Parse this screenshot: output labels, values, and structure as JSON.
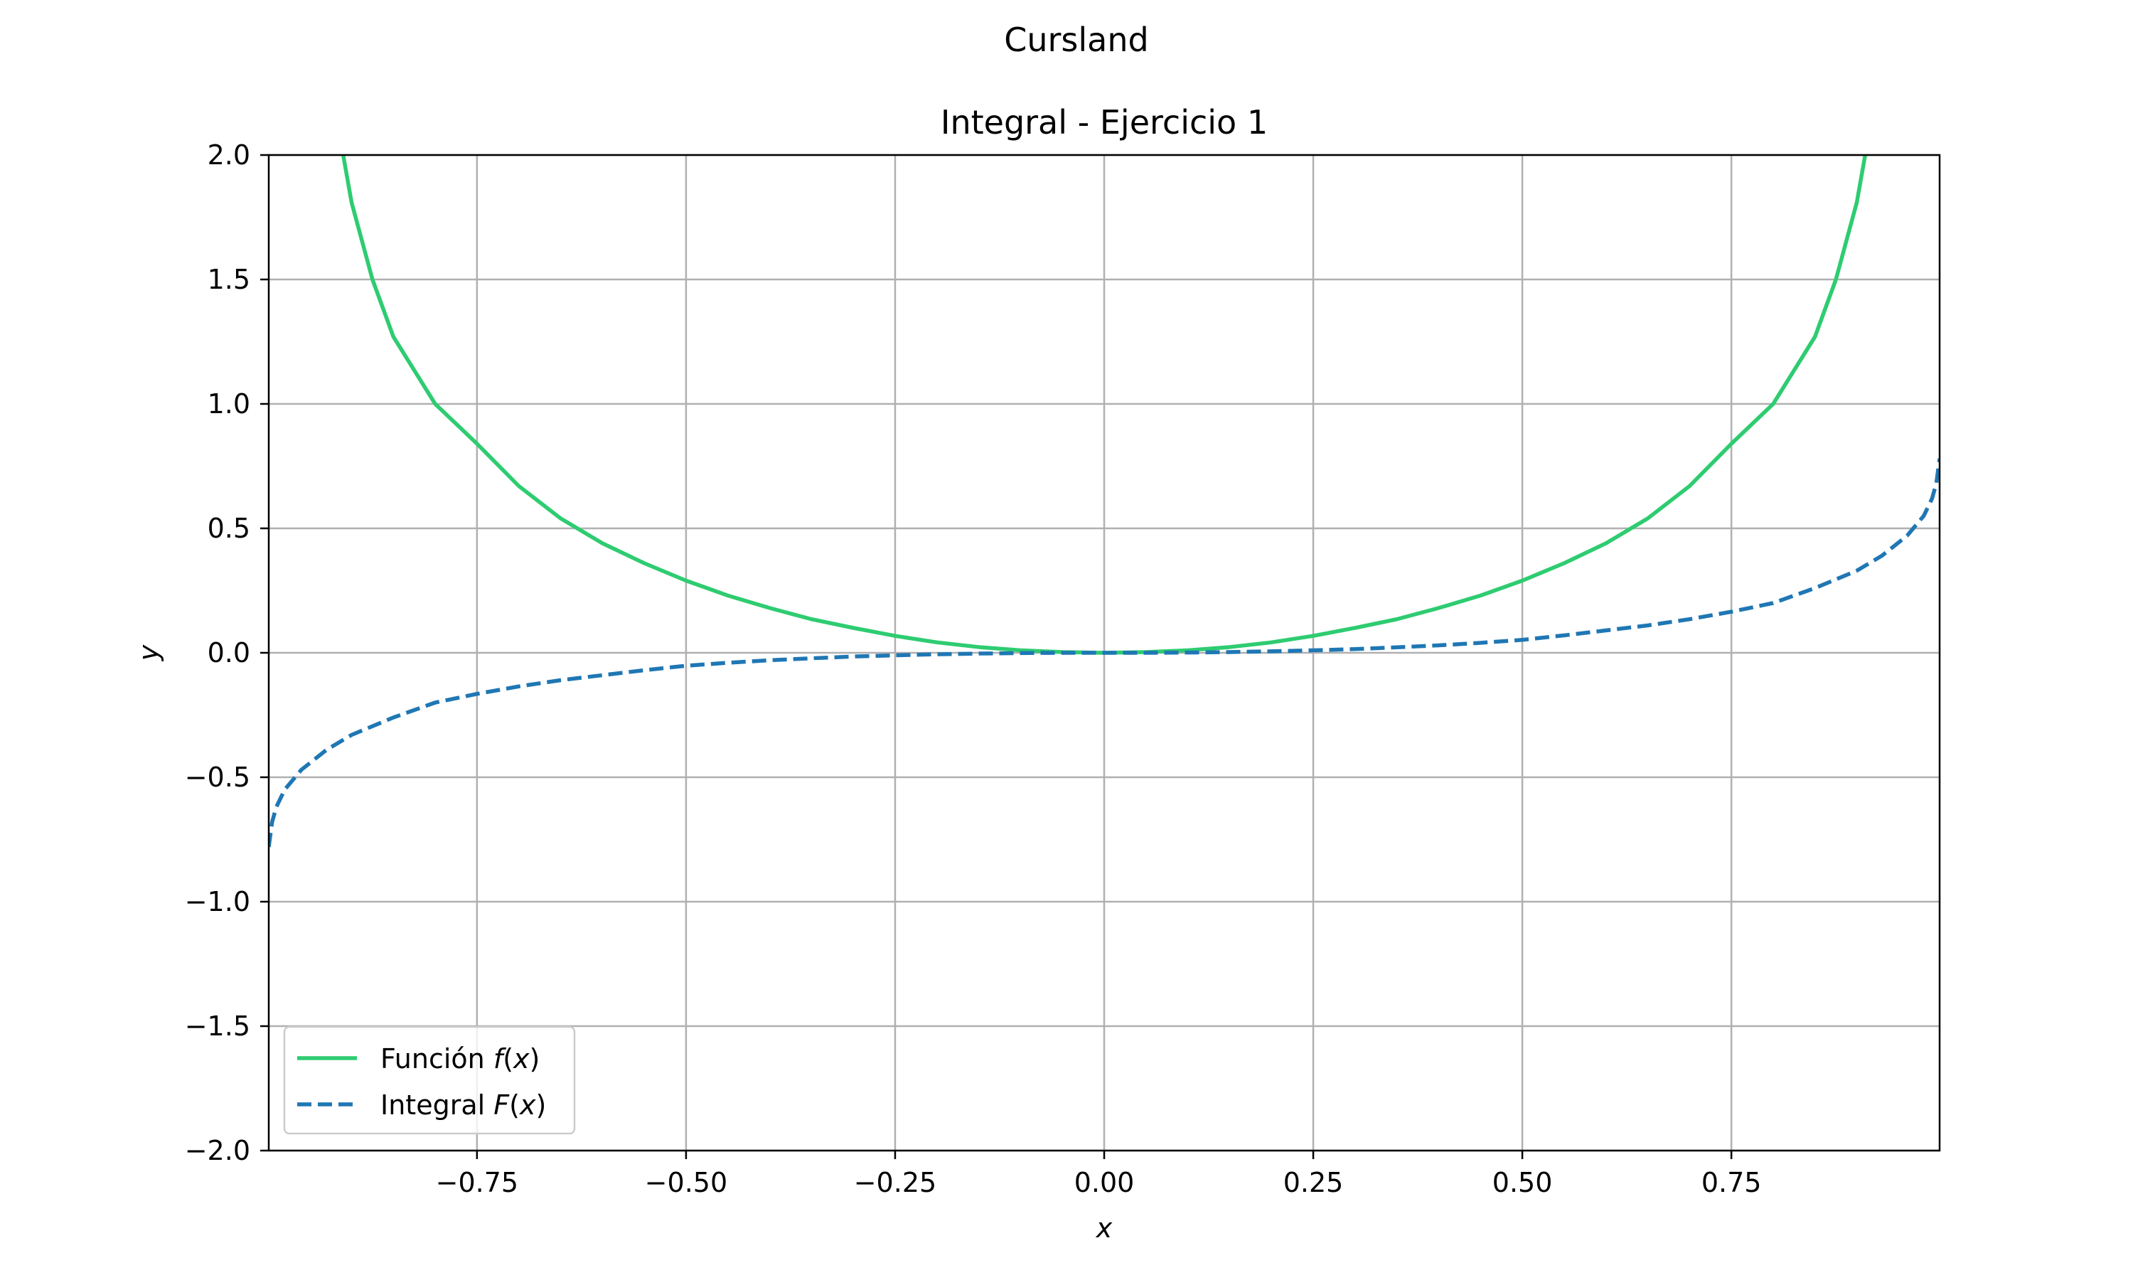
{
  "figure": {
    "suptitle": "Cursland"
  },
  "chart_data": {
    "type": "line",
    "title": "Integral - Ejercicio 1",
    "xlabel": "x",
    "ylabel": "y",
    "xlim": [
      -0.999,
      0.999
    ],
    "ylim": [
      -2.0,
      2.0
    ],
    "grid": true,
    "legend_position": "lower-left",
    "x_ticks": [
      -0.75,
      -0.5,
      -0.25,
      0.0,
      0.25,
      0.5,
      0.75
    ],
    "x_tick_labels": [
      "−0.75",
      "−0.50",
      "−0.25",
      "0.00",
      "0.25",
      "0.50",
      "0.75"
    ],
    "y_ticks": [
      2.0,
      1.5,
      1.0,
      0.5,
      0.0,
      -0.5,
      -1.0,
      -1.5,
      -2.0
    ],
    "y_tick_labels": [
      "2.0",
      "1.5",
      "1.0",
      "0.5",
      "0.0",
      "−0.5",
      "−1.0",
      "−1.5",
      "−2.0"
    ],
    "series": [
      {
        "name": "Función f(x)",
        "legend_prefix": "Función ",
        "legend_math": "f",
        "color": "#2ecc71",
        "dash": "solid",
        "x": [
          -0.91,
          -0.9,
          -0.875,
          -0.85,
          -0.8,
          -0.75,
          -0.7,
          -0.65,
          -0.6,
          -0.55,
          -0.5,
          -0.45,
          -0.4,
          -0.35,
          -0.3,
          -0.25,
          -0.2,
          -0.15,
          -0.1,
          -0.05,
          0.0,
          0.05,
          0.1,
          0.15,
          0.2,
          0.25,
          0.3,
          0.35,
          0.4,
          0.45,
          0.5,
          0.55,
          0.6,
          0.65,
          0.7,
          0.75,
          0.8,
          0.85,
          0.875,
          0.9,
          0.91
        ],
        "y": [
          2.0,
          1.81,
          1.5,
          1.27,
          1.0,
          0.84,
          0.67,
          0.54,
          0.44,
          0.36,
          0.29,
          0.23,
          0.18,
          0.135,
          0.1,
          0.068,
          0.042,
          0.023,
          0.01,
          0.003,
          0.0,
          0.003,
          0.01,
          0.023,
          0.042,
          0.068,
          0.1,
          0.135,
          0.18,
          0.23,
          0.29,
          0.36,
          0.44,
          0.54,
          0.67,
          0.84,
          1.0,
          1.27,
          1.5,
          1.81,
          2.0
        ]
      },
      {
        "name": "Integral F(x)",
        "legend_prefix": "Integral ",
        "legend_math": "F",
        "color": "#1f77b4",
        "dash": "dashed",
        "x": [
          -0.999,
          -0.995,
          -0.99,
          -0.98,
          -0.96,
          -0.93,
          -0.9,
          -0.85,
          -0.8,
          -0.75,
          -0.7,
          -0.65,
          -0.6,
          -0.55,
          -0.5,
          -0.45,
          -0.4,
          -0.35,
          -0.3,
          -0.25,
          -0.2,
          -0.15,
          -0.1,
          -0.05,
          0.0,
          0.05,
          0.1,
          0.15,
          0.2,
          0.25,
          0.3,
          0.35,
          0.4,
          0.45,
          0.5,
          0.55,
          0.6,
          0.65,
          0.7,
          0.75,
          0.8,
          0.85,
          0.9,
          0.93,
          0.96,
          0.98,
          0.99,
          0.995,
          0.999
        ],
        "y": [
          -0.78,
          -0.68,
          -0.62,
          -0.55,
          -0.47,
          -0.39,
          -0.33,
          -0.26,
          -0.2,
          -0.165,
          -0.135,
          -0.11,
          -0.09,
          -0.07,
          -0.052,
          -0.04,
          -0.03,
          -0.022,
          -0.015,
          -0.01,
          -0.006,
          -0.003,
          -0.001,
          0.0,
          0.0,
          0.0,
          0.001,
          0.003,
          0.006,
          0.01,
          0.015,
          0.022,
          0.03,
          0.04,
          0.052,
          0.07,
          0.09,
          0.11,
          0.135,
          0.165,
          0.2,
          0.26,
          0.33,
          0.39,
          0.47,
          0.55,
          0.62,
          0.68,
          0.78
        ]
      }
    ]
  }
}
